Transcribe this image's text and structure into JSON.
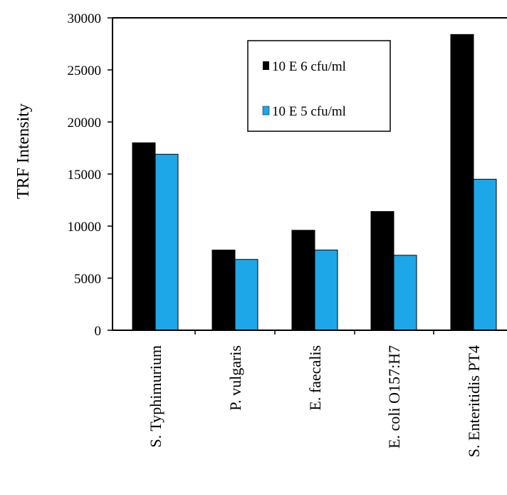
{
  "chart_data": {
    "type": "bar",
    "categories": [
      "S. Typhimurium",
      "P. vulgaris",
      "E. faecalis",
      "E. coli O157:H7",
      "S. Enteritidis PT4"
    ],
    "series": [
      {
        "name": "10 E 6 cfu/ml",
        "values": [
          18000,
          7700,
          9600,
          11400,
          28400
        ],
        "color": "#000000"
      },
      {
        "name": "10 E 5 cfu/ml",
        "values": [
          16900,
          6800,
          7700,
          7200,
          14500
        ],
        "color": "#1ea7e8"
      }
    ],
    "ylabel": "TRF Intensity",
    "ylim": [
      0,
      30000
    ],
    "yticks": [
      0,
      5000,
      10000,
      15000,
      20000,
      25000,
      30000
    ],
    "grid": false,
    "legend": "top-center"
  }
}
